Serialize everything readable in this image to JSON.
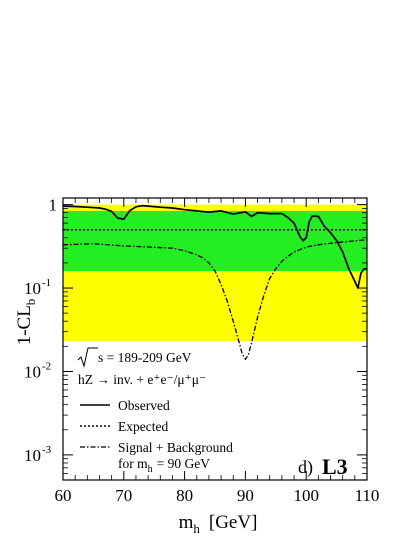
{
  "chart_data": {
    "type": "line",
    "xlabel_main": "m",
    "xlabel_sub": "h",
    "xlabel_unit": "[GeV]",
    "ylabel_main": "1-CL",
    "ylabel_sub": "b",
    "xlim": [
      60,
      110
    ],
    "ylim": [
      0.0005,
      1.2
    ],
    "yscale": "log",
    "x_ticks": [
      60,
      70,
      80,
      90,
      100,
      110
    ],
    "x_tick_labels": [
      "60",
      "70",
      "80",
      "90",
      "100",
      "110"
    ],
    "y_ticks": [
      {
        "value": 1,
        "label": "1",
        "exp": ""
      },
      {
        "value": 0.1,
        "label": "10",
        "exp": "-1"
      },
      {
        "value": 0.01,
        "label": "10",
        "exp": "-2"
      },
      {
        "value": 0.001,
        "label": "10",
        "exp": "-3"
      }
    ],
    "bands": [
      {
        "name": "2 sigma",
        "color": "#ffff00",
        "y_low": 0.023,
        "y_high": 1.0
      },
      {
        "name": "1 sigma",
        "color": "#22ee22",
        "y_low": 0.16,
        "y_high": 0.84
      }
    ],
    "series": [
      {
        "name": "Observed",
        "style": "solid",
        "x": [
          60,
          62,
          64,
          66,
          67,
          68,
          69,
          70,
          71,
          72,
          73,
          74,
          76,
          78,
          80,
          82,
          84,
          86,
          88,
          90,
          91,
          92,
          94,
          96,
          97,
          98,
          99,
          99.5,
          100,
          100.5,
          101,
          102,
          103,
          104,
          105,
          106,
          107,
          108,
          108.5,
          109,
          109.5,
          110
        ],
        "y": [
          0.96,
          0.95,
          0.93,
          0.91,
          0.88,
          0.83,
          0.69,
          0.67,
          0.85,
          0.94,
          0.97,
          0.96,
          0.93,
          0.91,
          0.87,
          0.84,
          0.81,
          0.84,
          0.77,
          0.82,
          0.72,
          0.8,
          0.78,
          0.78,
          0.7,
          0.6,
          0.41,
          0.37,
          0.4,
          0.62,
          0.73,
          0.72,
          0.55,
          0.46,
          0.37,
          0.27,
          0.17,
          0.12,
          0.1,
          0.15,
          0.17,
          0.17
        ]
      },
      {
        "name": "Expected",
        "style": "dotted",
        "x": [
          60,
          110
        ],
        "y": [
          0.5,
          0.5
        ]
      },
      {
        "name": "Signal + Background",
        "style": "dashdot",
        "x": [
          60,
          65,
          70,
          74,
          78,
          80,
          82,
          83,
          84,
          85,
          86,
          87,
          88,
          89,
          89.5,
          90,
          90.5,
          91,
          92,
          93,
          94,
          95,
          96,
          97,
          98,
          100,
          102,
          105,
          110
        ],
        "y": [
          0.33,
          0.34,
          0.32,
          0.31,
          0.3,
          0.28,
          0.25,
          0.23,
          0.2,
          0.16,
          0.11,
          0.07,
          0.04,
          0.022,
          0.016,
          0.014,
          0.016,
          0.022,
          0.045,
          0.08,
          0.13,
          0.17,
          0.21,
          0.24,
          0.27,
          0.31,
          0.33,
          0.35,
          0.38
        ]
      }
    ]
  },
  "legend": {
    "energy_prefix": "s = 189-209 GeV",
    "process": "hZ → inv. + e⁺e⁻/μ⁺μ⁻",
    "observed": "Observed",
    "expected": "Expected",
    "signal_background": "Signal + Background",
    "mass_note_prefix": "for m",
    "mass_note_sub": "h",
    "mass_note_suffix": "= 90 GeV"
  },
  "panel_label": "d)",
  "experiment": "L3"
}
